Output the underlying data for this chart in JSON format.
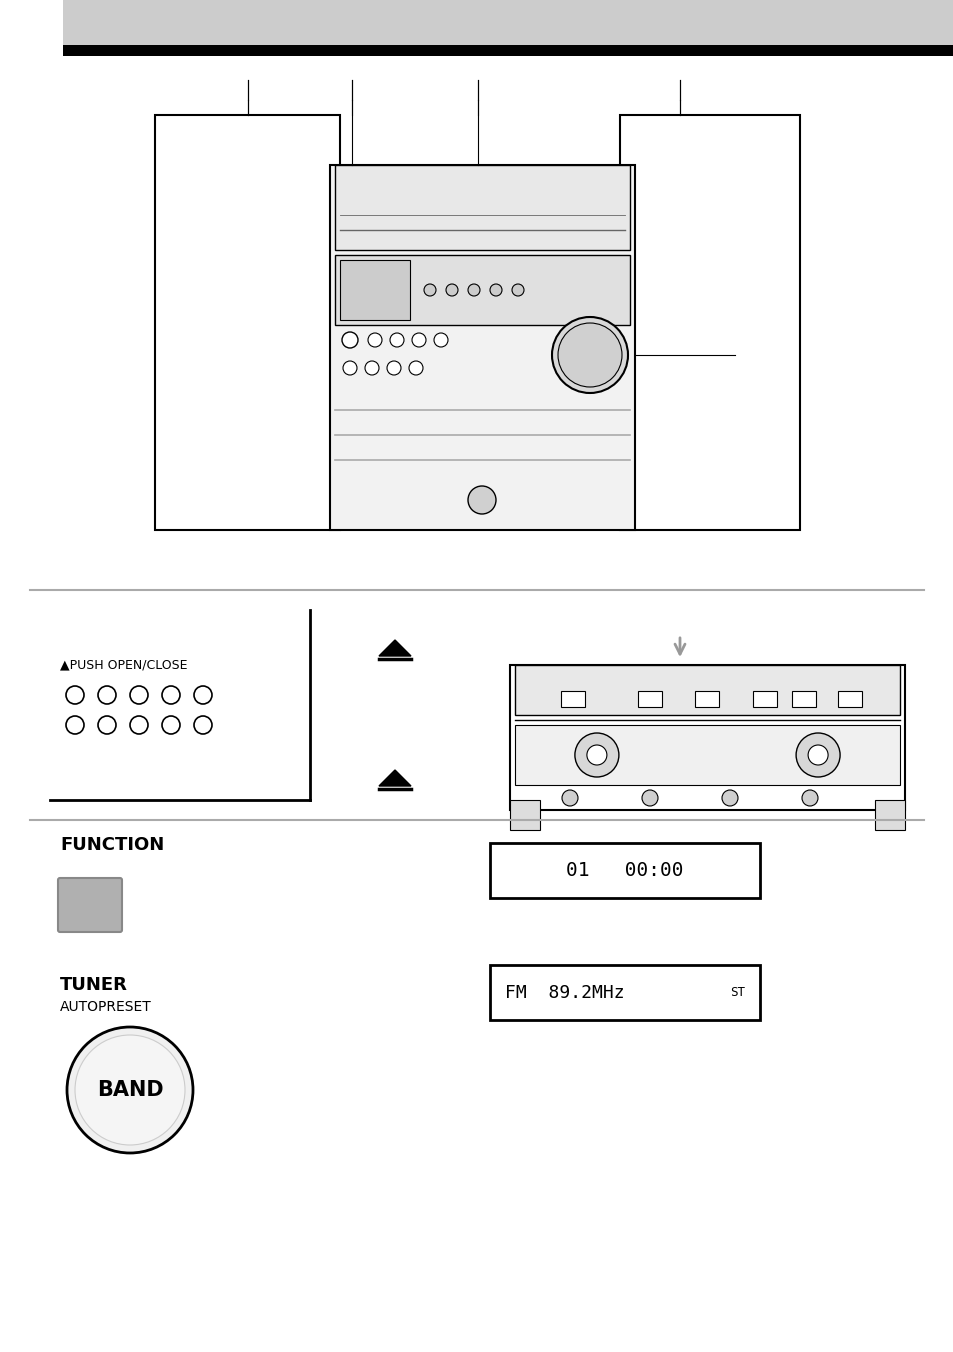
{
  "page_bg": "#ffffff",
  "header_bg": "#cccccc",
  "header_bar_color": "#000000",
  "divider_color": "#aaaaaa",
  "text_color": "#000000",
  "label_PUSH": "▲PUSH OPEN/CLOSE",
  "label_FUNCTION": "FUNCTION",
  "label_TUNER": "TUNER",
  "label_AUTOPRESET": "AUTOPRESET",
  "label_BAND": "BAND",
  "display1": "01   00:00",
  "display2": "FM  89.2MHz",
  "display2_suffix": "ST",
  "arrow_color": "#999999"
}
